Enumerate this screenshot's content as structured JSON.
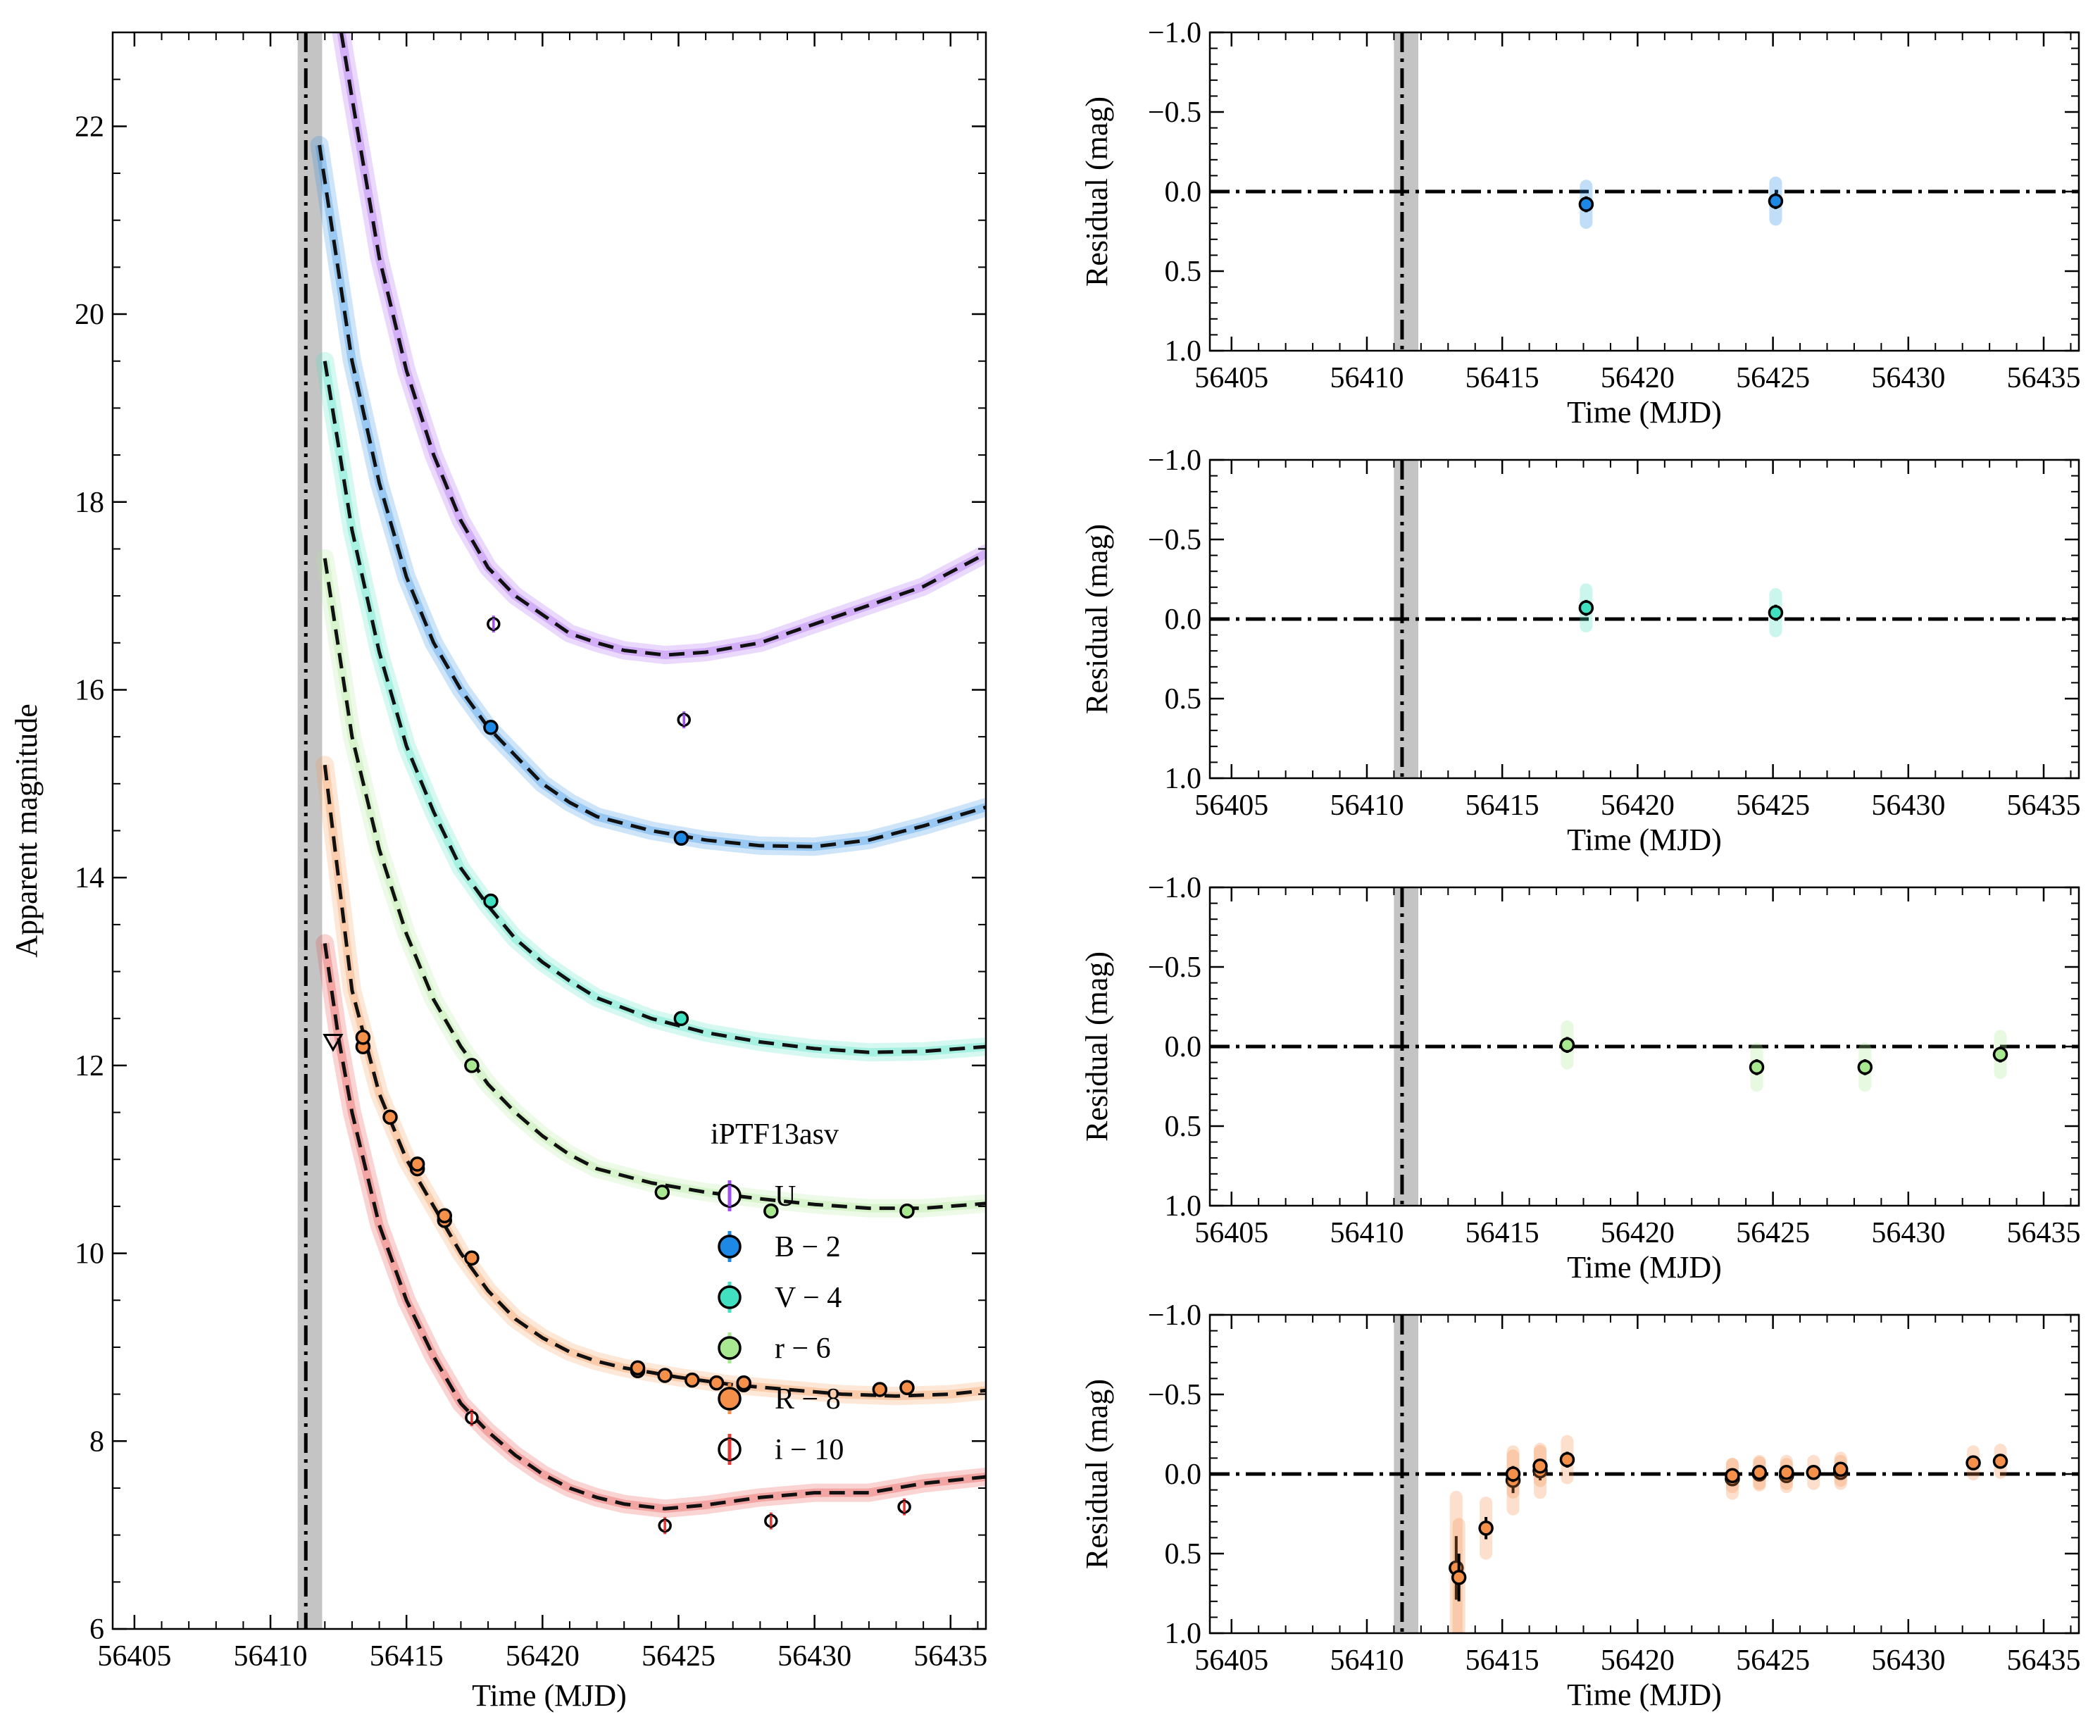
{
  "figure": {
    "background": "#ffffff"
  },
  "chart_data": [
    {
      "type": "scatter",
      "id": "lightcurve",
      "title": "",
      "xlabel": "Time (MJD)",
      "ylabel": "Apparent magnitude",
      "xlim": [
        56404.2,
        56436.3
      ],
      "ylim": [
        23.0,
        6.0
      ],
      "xticks": [
        56405,
        56410,
        56415,
        56420,
        56425,
        56430,
        56435
      ],
      "yticks": [
        6,
        8,
        10,
        12,
        14,
        16,
        18,
        20,
        22
      ],
      "explosion_epoch": 56411.3,
      "explosion_band": [
        56411.0,
        56411.9
      ],
      "legend": {
        "title": "iPTF13asv",
        "position": "lower-right",
        "entries": [
          {
            "label": "U",
            "color": "#a050f0",
            "filled": false
          },
          {
            "label": "B − 2",
            "color": "#1e88e5",
            "filled": true
          },
          {
            "label": "V − 4",
            "color": "#40e0c0",
            "filled": true
          },
          {
            "label": "r − 6",
            "color": "#a8e890",
            "filled": true
          },
          {
            "label": "R − 8",
            "color": "#f4904a",
            "filled": true
          },
          {
            "label": "i − 10",
            "color": "#e53935",
            "filled": false
          }
        ]
      },
      "series": [
        {
          "name": "i − 10",
          "color": "#e53935",
          "filled": false,
          "points": [
            [
              56424.5,
              7.1
            ],
            [
              56428.4,
              7.15
            ],
            [
              56433.3,
              7.3
            ],
            [
              56417.4,
              8.25
            ]
          ],
          "model": [
            [
              56412.0,
              13.3
            ],
            [
              56412.5,
              12.3
            ],
            [
              56413.0,
              11.5
            ],
            [
              56414.0,
              10.3
            ],
            [
              56415.0,
              9.5
            ],
            [
              56416.0,
              8.9
            ],
            [
              56417.0,
              8.4
            ],
            [
              56418.0,
              8.1
            ],
            [
              56419.0,
              7.85
            ],
            [
              56420.0,
              7.65
            ],
            [
              56421.0,
              7.5
            ],
            [
              56422.0,
              7.4
            ],
            [
              56423.0,
              7.33
            ],
            [
              56424.5,
              7.28
            ],
            [
              56426.0,
              7.32
            ],
            [
              56428.0,
              7.4
            ],
            [
              56430.0,
              7.45
            ],
            [
              56432.0,
              7.45
            ],
            [
              56434.0,
              7.55
            ],
            [
              56436.3,
              7.62
            ]
          ]
        },
        {
          "name": "R − 8",
          "color": "#f4904a",
          "filled": true,
          "points": [
            [
              56413.4,
              12.2
            ],
            [
              56413.4,
              12.3
            ],
            [
              56414.4,
              11.45
            ],
            [
              56415.4,
              10.9
            ],
            [
              56415.4,
              10.95
            ],
            [
              56416.4,
              10.35
            ],
            [
              56416.4,
              10.4
            ],
            [
              56417.4,
              9.95
            ],
            [
              56423.5,
              8.75
            ],
            [
              56423.5,
              8.78
            ],
            [
              56424.5,
              8.7
            ],
            [
              56425.5,
              8.65
            ],
            [
              56426.4,
              8.62
            ],
            [
              56427.4,
              8.6
            ],
            [
              56427.4,
              8.62
            ],
            [
              56432.4,
              8.55
            ],
            [
              56433.4,
              8.57
            ]
          ],
          "upper_limits": [
            [
              56412.3,
              12.25
            ]
          ],
          "model": [
            [
              56412.0,
              15.2
            ],
            [
              56413.0,
              12.8
            ],
            [
              56414.0,
              11.7
            ],
            [
              56415.0,
              11.0
            ],
            [
              56416.0,
              10.5
            ],
            [
              56417.0,
              10.0
            ],
            [
              56418.0,
              9.6
            ],
            [
              56419.0,
              9.3
            ],
            [
              56420.0,
              9.1
            ],
            [
              56421.0,
              8.95
            ],
            [
              56422.0,
              8.85
            ],
            [
              56423.0,
              8.78
            ],
            [
              56424.0,
              8.73
            ],
            [
              56425.0,
              8.68
            ],
            [
              56427.0,
              8.6
            ],
            [
              56429.0,
              8.55
            ],
            [
              56431.0,
              8.5
            ],
            [
              56433.0,
              8.48
            ],
            [
              56435.0,
              8.5
            ],
            [
              56436.3,
              8.54
            ]
          ]
        },
        {
          "name": "r − 6",
          "color": "#a8e890",
          "filled": true,
          "points": [
            [
              56417.4,
              12.0
            ],
            [
              56424.4,
              10.65
            ],
            [
              56428.4,
              10.45
            ],
            [
              56433.4,
              10.45
            ]
          ],
          "model": [
            [
              56412.0,
              17.4
            ],
            [
              56413.0,
              15.5
            ],
            [
              56414.0,
              14.3
            ],
            [
              56415.0,
              13.4
            ],
            [
              56416.0,
              12.7
            ],
            [
              56417.0,
              12.2
            ],
            [
              56418.0,
              11.8
            ],
            [
              56419.0,
              11.5
            ],
            [
              56420.0,
              11.25
            ],
            [
              56421.0,
              11.05
            ],
            [
              56422.0,
              10.9
            ],
            [
              56424.0,
              10.75
            ],
            [
              56426.0,
              10.65
            ],
            [
              56428.0,
              10.58
            ],
            [
              56430.0,
              10.52
            ],
            [
              56432.0,
              10.48
            ],
            [
              56434.0,
              10.48
            ],
            [
              56436.3,
              10.53
            ]
          ]
        },
        {
          "name": "V − 4",
          "color": "#40e0c0",
          "filled": true,
          "points": [
            [
              56418.1,
              13.75
            ],
            [
              56425.1,
              12.5
            ]
          ],
          "model": [
            [
              56412.0,
              19.5
            ],
            [
              56413.0,
              17.7
            ],
            [
              56414.0,
              16.4
            ],
            [
              56415.0,
              15.4
            ],
            [
              56416.0,
              14.7
            ],
            [
              56417.0,
              14.1
            ],
            [
              56418.0,
              13.7
            ],
            [
              56419.0,
              13.35
            ],
            [
              56420.0,
              13.1
            ],
            [
              56421.0,
              12.9
            ],
            [
              56422.0,
              12.72
            ],
            [
              56424.0,
              12.5
            ],
            [
              56426.0,
              12.35
            ],
            [
              56428.0,
              12.25
            ],
            [
              56430.0,
              12.18
            ],
            [
              56432.0,
              12.14
            ],
            [
              56434.0,
              12.15
            ],
            [
              56436.3,
              12.2
            ]
          ]
        },
        {
          "name": "B − 2",
          "color": "#1e88e5",
          "filled": true,
          "points": [
            [
              56418.1,
              15.6
            ],
            [
              56425.1,
              14.42
            ]
          ],
          "model": [
            [
              56411.8,
              21.8
            ],
            [
              56413.0,
              19.5
            ],
            [
              56414.0,
              18.2
            ],
            [
              56415.0,
              17.2
            ],
            [
              56416.0,
              16.5
            ],
            [
              56417.0,
              16.0
            ],
            [
              56418.0,
              15.6
            ],
            [
              56419.0,
              15.3
            ],
            [
              56420.0,
              15.0
            ],
            [
              56421.0,
              14.8
            ],
            [
              56422.0,
              14.65
            ],
            [
              56424.0,
              14.5
            ],
            [
              56426.0,
              14.4
            ],
            [
              56428.0,
              14.34
            ],
            [
              56430.0,
              14.33
            ],
            [
              56432.0,
              14.4
            ],
            [
              56434.0,
              14.55
            ],
            [
              56436.3,
              14.75
            ]
          ]
        },
        {
          "name": "U",
          "color": "#a050f0",
          "filled": false,
          "points": [
            [
              56418.2,
              16.7
            ],
            [
              56425.2,
              15.68
            ]
          ],
          "model": [
            [
              56412.6,
              23.0
            ],
            [
              56413.0,
              22.3
            ],
            [
              56414.0,
              20.6
            ],
            [
              56415.0,
              19.4
            ],
            [
              56416.0,
              18.5
            ],
            [
              56417.0,
              17.8
            ],
            [
              56418.0,
              17.3
            ],
            [
              56419.0,
              17.0
            ],
            [
              56420.0,
              16.8
            ],
            [
              56421.0,
              16.6
            ],
            [
              56422.0,
              16.5
            ],
            [
              56423.0,
              16.42
            ],
            [
              56424.5,
              16.37
            ],
            [
              56426.0,
              16.4
            ],
            [
              56428.0,
              16.5
            ],
            [
              56430.0,
              16.7
            ],
            [
              56432.0,
              16.9
            ],
            [
              56434.0,
              17.1
            ],
            [
              56436.3,
              17.45
            ]
          ]
        }
      ]
    },
    {
      "type": "scatter",
      "id": "residual-B",
      "xlabel": "Time (MJD)",
      "ylabel": "Residual (mag)",
      "xlim": [
        56404.2,
        56436.3
      ],
      "ylim": [
        -1.0,
        1.0
      ],
      "xticks": [
        56405,
        56410,
        56415,
        56420,
        56425,
        56430,
        56435
      ],
      "yticks": [
        1.0,
        0.5,
        0.0,
        -0.5,
        -1.0
      ],
      "ytick_labels": [
        "1.0",
        "0.5",
        "0.0",
        "−0.5",
        "−1.0"
      ],
      "color": "#1e88e5",
      "points": [
        [
          56418.1,
          0.08
        ],
        [
          56425.1,
          0.06
        ]
      ]
    },
    {
      "type": "scatter",
      "id": "residual-V",
      "xlabel": "Time (MJD)",
      "ylabel": "Residual (mag)",
      "xlim": [
        56404.2,
        56436.3
      ],
      "ylim": [
        -1.0,
        1.0
      ],
      "xticks": [
        56405,
        56410,
        56415,
        56420,
        56425,
        56430,
        56435
      ],
      "yticks": [
        1.0,
        0.5,
        0.0,
        -0.5,
        -1.0
      ],
      "ytick_labels": [
        "1.0",
        "0.5",
        "0.0",
        "−0.5",
        "−1.0"
      ],
      "color": "#40e0c0",
      "points": [
        [
          56418.1,
          -0.07
        ],
        [
          56425.1,
          -0.04
        ]
      ]
    },
    {
      "type": "scatter",
      "id": "residual-r",
      "xlabel": "Time (MJD)",
      "ylabel": "Residual (mag)",
      "xlim": [
        56404.2,
        56436.3
      ],
      "ylim": [
        -1.0,
        1.0
      ],
      "xticks": [
        56405,
        56410,
        56415,
        56420,
        56425,
        56430,
        56435
      ],
      "yticks": [
        1.0,
        0.5,
        0.0,
        -0.5,
        -1.0
      ],
      "ytick_labels": [
        "1.0",
        "0.5",
        "0.0",
        "−0.5",
        "−1.0"
      ],
      "color": "#a8e890",
      "points": [
        [
          56417.4,
          -0.01
        ],
        [
          56424.4,
          0.13
        ],
        [
          56428.4,
          0.13
        ],
        [
          56433.4,
          0.05
        ]
      ]
    },
    {
      "type": "scatter",
      "id": "residual-R",
      "xlabel": "Time (MJD)",
      "ylabel": "Residual (mag)",
      "xlim": [
        56404.2,
        56436.3
      ],
      "ylim": [
        -1.0,
        1.0
      ],
      "xticks": [
        56405,
        56410,
        56415,
        56420,
        56425,
        56430,
        56435
      ],
      "yticks": [
        1.0,
        0.5,
        0.0,
        -0.5,
        -1.0
      ],
      "ytick_labels": [
        "1.0",
        "0.5",
        "0.0",
        "−0.5",
        "−1.0"
      ],
      "color": "#f4904a",
      "points": [
        [
          56413.3,
          0.59
        ],
        [
          56413.4,
          0.65
        ],
        [
          56414.4,
          0.34
        ],
        [
          56415.4,
          0.04
        ],
        [
          56415.4,
          0.0
        ],
        [
          56416.4,
          -0.02
        ],
        [
          56416.4,
          -0.05
        ],
        [
          56417.4,
          -0.09
        ],
        [
          56423.5,
          0.03
        ],
        [
          56423.5,
          0.01
        ],
        [
          56424.5,
          0.0
        ],
        [
          56424.5,
          -0.01
        ],
        [
          56425.5,
          0.01
        ],
        [
          56425.5,
          -0.01
        ],
        [
          56426.5,
          -0.01
        ],
        [
          56427.5,
          -0.01
        ],
        [
          56427.5,
          -0.03
        ],
        [
          56432.4,
          -0.07
        ],
        [
          56433.4,
          -0.08
        ]
      ],
      "errors": [
        0.2,
        0.15,
        0.07,
        0.08,
        0.05,
        0.06,
        0.04,
        0.05,
        0.04,
        0.03,
        0.03,
        0.03,
        0.03,
        0.03,
        0.03,
        0.03,
        0.03,
        0.03,
        0.03
      ]
    }
  ]
}
